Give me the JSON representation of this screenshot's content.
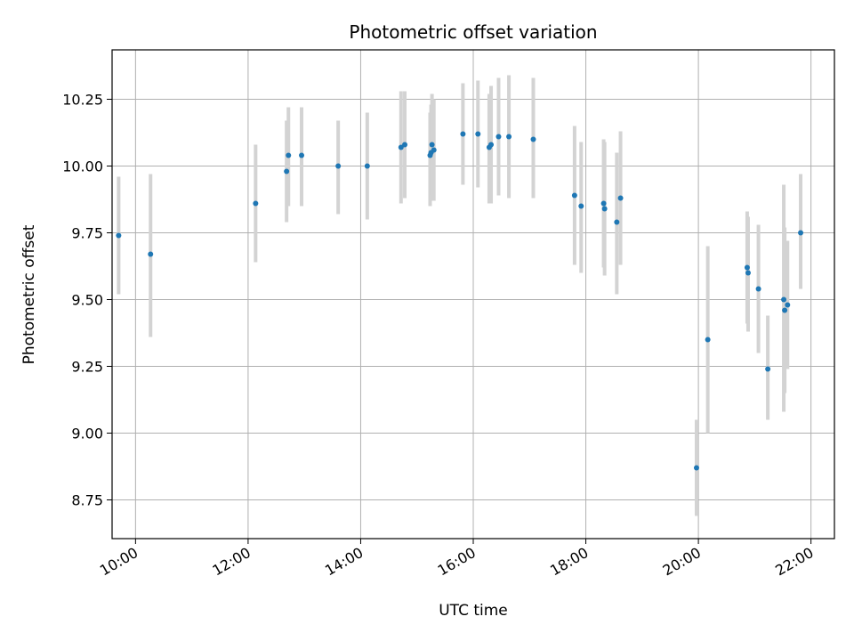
{
  "chart_data": {
    "type": "scatter",
    "title": "Photometric offset variation",
    "xlabel": "UTC time",
    "ylabel": "Photometric offset",
    "x_ticks": [
      "10:00",
      "12:00",
      "14:00",
      "16:00",
      "18:00",
      "20:00",
      "22:00"
    ],
    "y_ticks": [
      "8.75",
      "9.00",
      "9.25",
      "9.50",
      "9.75",
      "10.00",
      "10.25"
    ],
    "xlim": [
      "09:35",
      "22:25"
    ],
    "ylim": [
      8.605,
      10.435
    ],
    "grid": true,
    "legend": "none",
    "colors": {
      "points": "#1f77b4",
      "error_bars": "#d3d3d3",
      "grid": "#b0b0b0"
    },
    "points": [
      {
        "x": "09:42",
        "y": 9.74,
        "yerr_low": 9.52,
        "yerr_high": 9.96
      },
      {
        "x": "10:16",
        "y": 9.67,
        "yerr_low": 9.36,
        "yerr_high": 9.97
      },
      {
        "x": "12:08",
        "y": 9.86,
        "yerr_low": 9.64,
        "yerr_high": 10.08
      },
      {
        "x": "12:41",
        "y": 9.98,
        "yerr_low": 9.79,
        "yerr_high": 10.17
      },
      {
        "x": "12:43",
        "y": 10.04,
        "yerr_low": 9.85,
        "yerr_high": 10.22
      },
      {
        "x": "12:57",
        "y": 10.04,
        "yerr_low": 9.85,
        "yerr_high": 10.22
      },
      {
        "x": "13:36",
        "y": 10.0,
        "yerr_low": 9.82,
        "yerr_high": 10.17
      },
      {
        "x": "14:07",
        "y": 10.0,
        "yerr_low": 9.8,
        "yerr_high": 10.2
      },
      {
        "x": "14:43",
        "y": 10.07,
        "yerr_low": 9.86,
        "yerr_high": 10.28
      },
      {
        "x": "14:47",
        "y": 10.08,
        "yerr_low": 9.88,
        "yerr_high": 10.28
      },
      {
        "x": "15:14",
        "y": 10.04,
        "yerr_low": 9.85,
        "yerr_high": 10.2
      },
      {
        "x": "15:15",
        "y": 10.05,
        "yerr_low": 9.87,
        "yerr_high": 10.23
      },
      {
        "x": "15:16",
        "y": 10.08,
        "yerr_low": 9.89,
        "yerr_high": 10.27
      },
      {
        "x": "15:18",
        "y": 10.06,
        "yerr_low": 9.87,
        "yerr_high": 10.25
      },
      {
        "x": "15:49",
        "y": 10.12,
        "yerr_low": 9.93,
        "yerr_high": 10.31
      },
      {
        "x": "16:05",
        "y": 10.12,
        "yerr_low": 9.92,
        "yerr_high": 10.32
      },
      {
        "x": "16:17",
        "y": 10.07,
        "yerr_low": 9.86,
        "yerr_high": 10.27
      },
      {
        "x": "16:19",
        "y": 10.08,
        "yerr_low": 9.86,
        "yerr_high": 10.3
      },
      {
        "x": "16:27",
        "y": 10.11,
        "yerr_low": 9.89,
        "yerr_high": 10.33
      },
      {
        "x": "16:38",
        "y": 10.11,
        "yerr_low": 9.88,
        "yerr_high": 10.34
      },
      {
        "x": "17:04",
        "y": 10.1,
        "yerr_low": 9.88,
        "yerr_high": 10.33
      },
      {
        "x": "17:48",
        "y": 9.89,
        "yerr_low": 9.63,
        "yerr_high": 10.15
      },
      {
        "x": "17:55",
        "y": 9.85,
        "yerr_low": 9.6,
        "yerr_high": 10.09
      },
      {
        "x": "18:19",
        "y": 9.86,
        "yerr_low": 9.62,
        "yerr_high": 10.1
      },
      {
        "x": "18:20",
        "y": 9.84,
        "yerr_low": 9.59,
        "yerr_high": 10.09
      },
      {
        "x": "18:33",
        "y": 9.79,
        "yerr_low": 9.52,
        "yerr_high": 10.05
      },
      {
        "x": "18:37",
        "y": 9.88,
        "yerr_low": 9.63,
        "yerr_high": 10.13
      },
      {
        "x": "19:58",
        "y": 8.87,
        "yerr_low": 8.69,
        "yerr_high": 9.05
      },
      {
        "x": "20:10",
        "y": 9.35,
        "yerr_low": 9.0,
        "yerr_high": 9.7
      },
      {
        "x": "20:52",
        "y": 9.62,
        "yerr_low": 9.41,
        "yerr_high": 9.83
      },
      {
        "x": "20:53",
        "y": 9.6,
        "yerr_low": 9.38,
        "yerr_high": 9.81
      },
      {
        "x": "21:04",
        "y": 9.54,
        "yerr_low": 9.3,
        "yerr_high": 9.78
      },
      {
        "x": "21:14",
        "y": 9.24,
        "yerr_low": 9.05,
        "yerr_high": 9.44
      },
      {
        "x": "21:31",
        "y": 9.5,
        "yerr_low": 9.08,
        "yerr_high": 9.93
      },
      {
        "x": "21:32",
        "y": 9.46,
        "yerr_low": 9.15,
        "yerr_high": 9.77
      },
      {
        "x": "21:35",
        "y": 9.48,
        "yerr_low": 9.24,
        "yerr_high": 9.72
      },
      {
        "x": "21:49",
        "y": 9.75,
        "yerr_low": 9.54,
        "yerr_high": 9.97
      }
    ]
  }
}
